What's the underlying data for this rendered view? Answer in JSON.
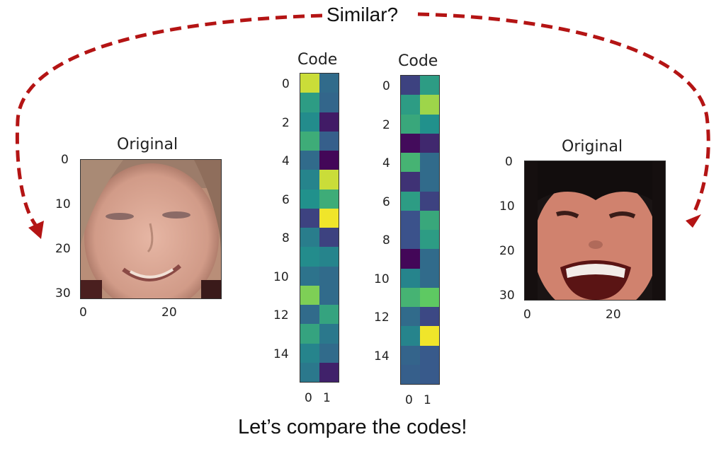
{
  "header": {
    "question": "Similar?"
  },
  "footer": {
    "caption": "Let’s compare the codes!"
  },
  "colors": {
    "arrow": "#b41414"
  },
  "faces": [
    {
      "title": "Original",
      "y_ticks": [
        "0",
        "10",
        "20",
        "30"
      ],
      "x_ticks": [
        "0",
        "20"
      ]
    },
    {
      "title": "Original",
      "y_ticks": [
        "0",
        "10",
        "20",
        "30"
      ],
      "x_ticks": [
        "0",
        "20"
      ]
    }
  ],
  "codes": [
    {
      "title": "Code",
      "y_ticks": [
        "0",
        "2",
        "4",
        "6",
        "8",
        "10",
        "12",
        "14"
      ],
      "x_ticks": [
        "0",
        "1"
      ],
      "values": [
        [
          0.92,
          0.35
        ],
        [
          0.55,
          0.33
        ],
        [
          0.48,
          0.08
        ],
        [
          0.62,
          0.3
        ],
        [
          0.35,
          0.02
        ],
        [
          0.45,
          0.92
        ],
        [
          0.5,
          0.62
        ],
        [
          0.2,
          0.98
        ],
        [
          0.42,
          0.2
        ],
        [
          0.48,
          0.45
        ],
        [
          0.38,
          0.35
        ],
        [
          0.8,
          0.35
        ],
        [
          0.35,
          0.58
        ],
        [
          0.58,
          0.4
        ],
        [
          0.45,
          0.35
        ],
        [
          0.4,
          0.1
        ]
      ]
    },
    {
      "title": "Code",
      "y_ticks": [
        "0",
        "2",
        "4",
        "6",
        "8",
        "10",
        "12",
        "14"
      ],
      "x_ticks": [
        "0",
        "1"
      ],
      "values": [
        [
          0.2,
          0.55
        ],
        [
          0.55,
          0.85
        ],
        [
          0.6,
          0.5
        ],
        [
          0.03,
          0.12
        ],
        [
          0.65,
          0.35
        ],
        [
          0.15,
          0.35
        ],
        [
          0.55,
          0.2
        ],
        [
          0.25,
          0.6
        ],
        [
          0.25,
          0.55
        ],
        [
          0.02,
          0.35
        ],
        [
          0.45,
          0.35
        ],
        [
          0.65,
          0.75
        ],
        [
          0.35,
          0.22
        ],
        [
          0.45,
          0.98
        ],
        [
          0.32,
          0.28
        ],
        [
          0.3,
          0.28
        ]
      ]
    }
  ]
}
